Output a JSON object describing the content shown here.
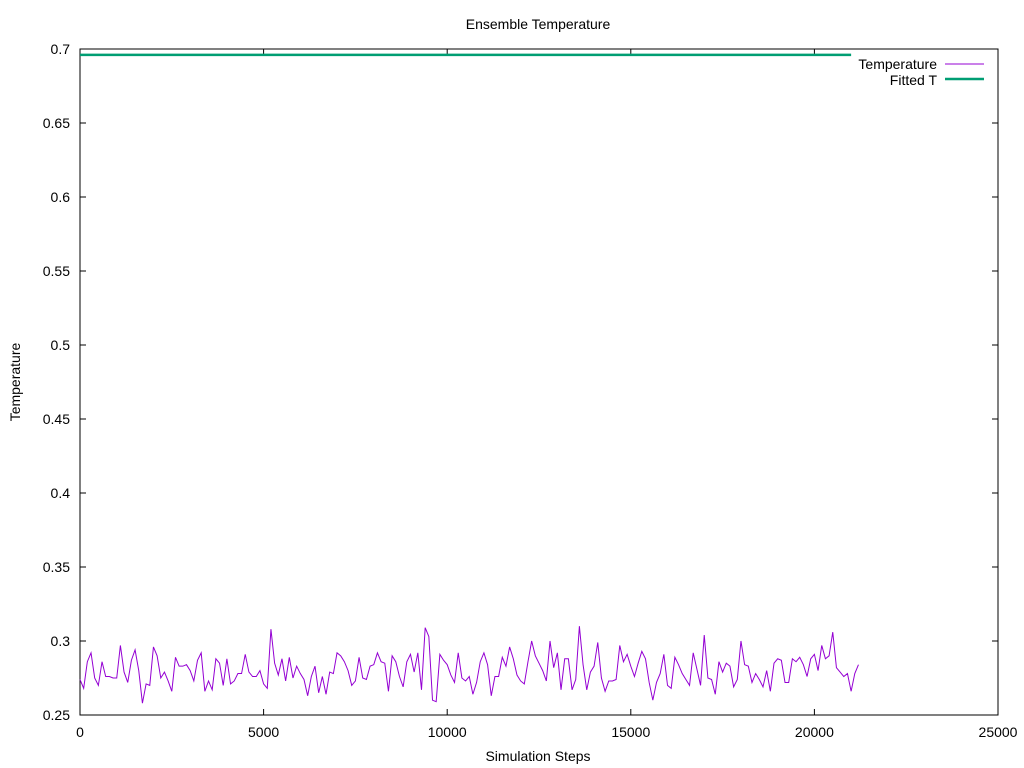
{
  "chart_data": {
    "type": "line",
    "title": "Ensemble Temperature",
    "xlabel": "Simulation Steps",
    "ylabel": "Temperature",
    "xlim": [
      0,
      25000
    ],
    "ylim": [
      0.25,
      0.7
    ],
    "xticks": [
      0,
      5000,
      10000,
      15000,
      20000,
      25000
    ],
    "xtick_labels": [
      "0",
      "5000",
      "10000",
      "15000",
      "20000",
      "25000"
    ],
    "yticks": [
      0.25,
      0.3,
      0.35,
      0.4,
      0.45,
      0.5,
      0.55,
      0.6,
      0.65,
      0.7
    ],
    "ytick_labels": [
      "0.25",
      "0.3",
      "0.35",
      "0.4",
      "0.45",
      "0.5",
      "0.55",
      "0.6",
      "0.65",
      "0.7"
    ],
    "grid": false,
    "legend_position": "top-right",
    "series": [
      {
        "name": "Temperature",
        "color": "#9400d3",
        "x_start": 0,
        "x_step": 100,
        "values": [
          0.274,
          0.268,
          0.286,
          0.292,
          0.275,
          0.27,
          0.286,
          0.276,
          0.276,
          0.275,
          0.275,
          0.297,
          0.279,
          0.272,
          0.287,
          0.294,
          0.28,
          0.258,
          0.271,
          0.27,
          0.296,
          0.29,
          0.275,
          0.279,
          0.273,
          0.266,
          0.289,
          0.283,
          0.283,
          0.284,
          0.28,
          0.273,
          0.287,
          0.292,
          0.266,
          0.273,
          0.267,
          0.288,
          0.285,
          0.27,
          0.288,
          0.271,
          0.273,
          0.278,
          0.278,
          0.291,
          0.279,
          0.276,
          0.276,
          0.28,
          0.271,
          0.268,
          0.308,
          0.285,
          0.277,
          0.288,
          0.273,
          0.289,
          0.275,
          0.283,
          0.278,
          0.274,
          0.263,
          0.276,
          0.283,
          0.265,
          0.276,
          0.264,
          0.279,
          0.278,
          0.292,
          0.29,
          0.286,
          0.28,
          0.27,
          0.273,
          0.289,
          0.275,
          0.274,
          0.283,
          0.284,
          0.292,
          0.286,
          0.285,
          0.266,
          0.29,
          0.286,
          0.276,
          0.269,
          0.286,
          0.291,
          0.279,
          0.292,
          0.267,
          0.309,
          0.303,
          0.26,
          0.259,
          0.291,
          0.287,
          0.284,
          0.277,
          0.272,
          0.292,
          0.275,
          0.273,
          0.276,
          0.264,
          0.272,
          0.286,
          0.292,
          0.284,
          0.263,
          0.276,
          0.276,
          0.289,
          0.283,
          0.296,
          0.288,
          0.277,
          0.273,
          0.271,
          0.286,
          0.3,
          0.29,
          0.285,
          0.28,
          0.273,
          0.3,
          0.282,
          0.292,
          0.267,
          0.288,
          0.288,
          0.267,
          0.274,
          0.31,
          0.284,
          0.267,
          0.279,
          0.283,
          0.299,
          0.275,
          0.266,
          0.273,
          0.273,
          0.274,
          0.297,
          0.286,
          0.291,
          0.283,
          0.276,
          0.285,
          0.293,
          0.288,
          0.272,
          0.26,
          0.272,
          0.278,
          0.291,
          0.27,
          0.268,
          0.289,
          0.284,
          0.278,
          0.274,
          0.27,
          0.292,
          0.281,
          0.27,
          0.304,
          0.275,
          0.274,
          0.264,
          0.286,
          0.279,
          0.285,
          0.283,
          0.269,
          0.274,
          0.3,
          0.284,
          0.283,
          0.272,
          0.278,
          0.274,
          0.269,
          0.28,
          0.266,
          0.285,
          0.288,
          0.287,
          0.272,
          0.272,
          0.288,
          0.286,
          0.289,
          0.284,
          0.276,
          0.288,
          0.291,
          0.28,
          0.297,
          0.288,
          0.29,
          0.306,
          0.282,
          0.279,
          0.276,
          0.278,
          0.266,
          0.278,
          0.284
        ]
      },
      {
        "name": "Fitted T",
        "color": "#009e73",
        "x": [
          0,
          21000
        ],
        "values": [
          0.696,
          0.696
        ]
      }
    ]
  }
}
